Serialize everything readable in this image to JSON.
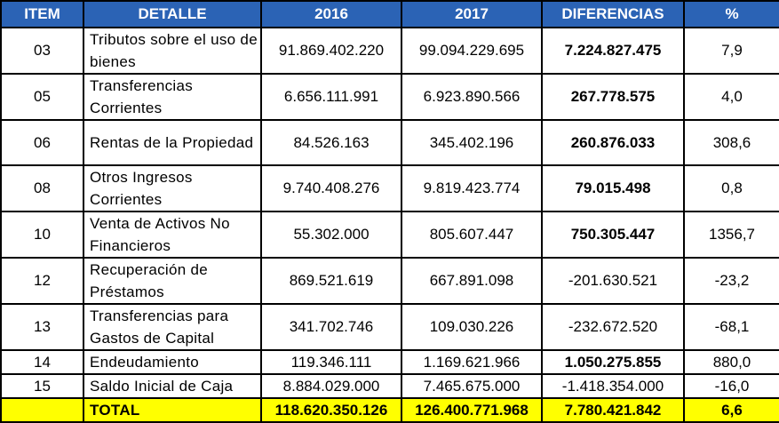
{
  "headers": {
    "item": "ITEM",
    "detalle": "DETALLE",
    "y2016": "2016",
    "y2017": "2017",
    "diferencias": "DIFERENCIAS",
    "pct": "%"
  },
  "rows": [
    {
      "item": "03",
      "detalle": "Tributos sobre el uso de bienes",
      "y2016": "91.869.402.220",
      "y2017": "99.094.229.695",
      "diferencia": "7.224.827.475",
      "pct": "7,9"
    },
    {
      "item": "05",
      "detalle": "Transferencias Corrientes",
      "y2016": "6.656.111.991",
      "y2017": "6.923.890.566",
      "diferencia": "267.778.575",
      "pct": "4,0"
    },
    {
      "item": "06",
      "detalle": "Rentas de la Propiedad",
      "y2016": "84.526.163",
      "y2017": "345.402.196",
      "diferencia": "260.876.033",
      "pct": "308,6"
    },
    {
      "item": "08",
      "detalle": "Otros Ingresos Corrientes",
      "y2016": "9.740.408.276",
      "y2017": "9.819.423.774",
      "diferencia": "79.015.498",
      "pct": "0,8"
    },
    {
      "item": "10",
      "detalle": "Venta de Activos No Financieros",
      "y2016": "55.302.000",
      "y2017": "805.607.447",
      "diferencia": "750.305.447",
      "pct": "1356,7"
    },
    {
      "item": "12",
      "detalle": "Recuperación de Préstamos",
      "y2016": "869.521.619",
      "y2017": "667.891.098",
      "diferencia": "-201.630.521",
      "pct": "-23,2"
    },
    {
      "item": "13",
      "detalle": "Transferencias para Gastos de Capital",
      "y2016": "341.702.746",
      "y2017": "109.030.226",
      "diferencia": "-232.672.520",
      "pct": "-68,1"
    },
    {
      "item": "14",
      "detalle": "Endeudamiento",
      "y2016": "119.346.111",
      "y2017": "1.169.621.966",
      "diferencia": "1.050.275.855",
      "pct": "880,0"
    },
    {
      "item": "15",
      "detalle": "Saldo Inicial de Caja",
      "y2016": "8.884.029.000",
      "y2017": "7.465.675.000",
      "diferencia": "-1.418.354.000",
      "pct": "-16,0"
    }
  ],
  "total": {
    "item": "",
    "detalle": "TOTAL",
    "y2016": "118.620.350.126",
    "y2017": "126.400.771.968",
    "diferencia": "7.780.421.842",
    "pct": "6,6"
  },
  "colors": {
    "header_bg": "#2b63b5",
    "header_text": "#ffffff",
    "total_bg": "#ffff00"
  }
}
